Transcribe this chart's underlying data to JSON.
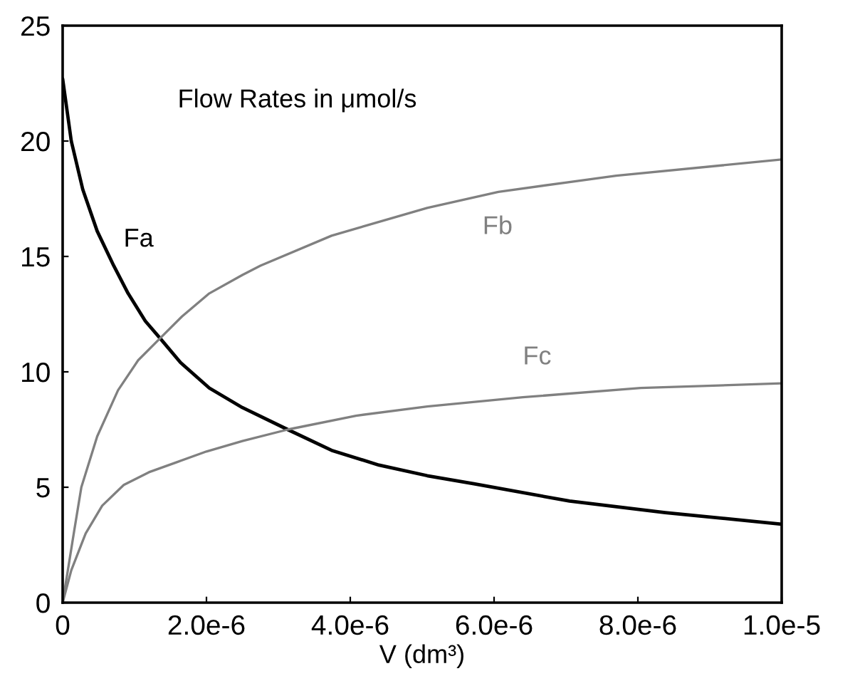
{
  "chart_data": {
    "type": "line",
    "xlabel": "V (dm³)",
    "annotations": [
      "Flow Rates in μmol/s"
    ],
    "xlim": [
      0,
      1e-05
    ],
    "ylim": [
      0,
      25
    ],
    "xticks": [
      0,
      {
        "value": 2e-06,
        "label": "2.0e-6"
      },
      {
        "value": 4e-06,
        "label": "4.0e-6"
      },
      {
        "value": 6e-06,
        "label": "6.0e-6"
      },
      {
        "value": 8e-06,
        "label": "8.0e-6"
      },
      {
        "value": 1e-05,
        "label": "1.0e-5"
      }
    ],
    "yticks": [
      0,
      5,
      10,
      15,
      20,
      25
    ],
    "marker": "none",
    "line_style": "solid",
    "series": [
      {
        "name": "Fa",
        "color": "#000000",
        "x": [
          0,
          1.2e-07,
          2.8e-07,
          4.8e-07,
          7.1e-07,
          9.1e-07,
          1.15e-06,
          1.37e-06,
          1.64e-06,
          2.04e-06,
          2.5e-06,
          3.13e-06,
          3.74e-06,
          4.4e-06,
          5.07e-06,
          5.72e-06,
          7.05e-06,
          8.38e-06,
          1e-05
        ],
        "values": [
          22.7,
          20.0,
          17.9,
          16.1,
          14.6,
          13.4,
          12.2,
          11.4,
          10.4,
          9.3,
          8.45,
          7.5,
          6.6,
          5.96,
          5.5,
          5.15,
          4.4,
          3.9,
          3.4
        ]
      },
      {
        "name": "Fb",
        "color": "#808080",
        "x": [
          0,
          1.6e-07,
          2.6e-07,
          4.8e-07,
          7.7e-07,
          1.05e-06,
          1.37e-06,
          1.66e-06,
          2.04e-06,
          2.5e-06,
          2.75e-06,
          3.74e-06,
          5.07e-06,
          6.06e-06,
          7.7e-06,
          1e-05
        ],
        "values": [
          0,
          3.1,
          5.0,
          7.2,
          9.2,
          10.5,
          11.5,
          12.4,
          13.4,
          14.2,
          14.6,
          15.9,
          17.1,
          17.8,
          18.5,
          19.2
        ]
      },
      {
        "name": "Fc",
        "color": "#808080",
        "x": [
          0,
          1.2e-07,
          3.2e-07,
          5.5e-07,
          8.5e-07,
          1.2e-06,
          1.6e-06,
          2e-06,
          2.5e-06,
          3.13e-06,
          4.08e-06,
          5.07e-06,
          6.4e-06,
          8.04e-06,
          1e-05
        ],
        "values": [
          0,
          1.4,
          3.0,
          4.2,
          5.1,
          5.65,
          6.1,
          6.55,
          7.0,
          7.5,
          8.1,
          8.5,
          8.9,
          9.3,
          9.5
        ]
      }
    ]
  }
}
